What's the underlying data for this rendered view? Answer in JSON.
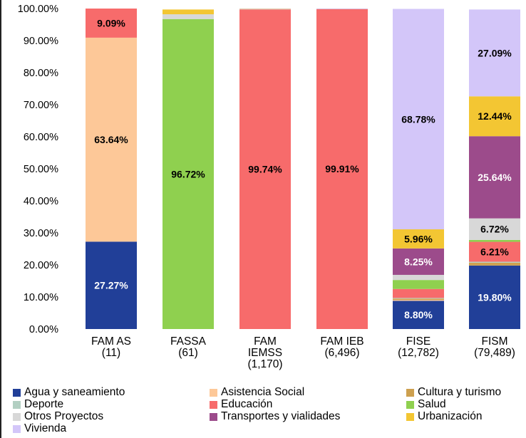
{
  "chart_data": {
    "type": "bar",
    "stacked": true,
    "y_axis": {
      "ticks": [
        "0.00%",
        "10.00%",
        "20.00%",
        "30.00%",
        "40.00%",
        "50.00%",
        "60.00%",
        "70.00%",
        "80.00%",
        "90.00%",
        "100.00%"
      ],
      "ylim": [
        0,
        100
      ],
      "unit": "%"
    },
    "categories": [
      {
        "lines": [
          "FAM AS",
          "(11)"
        ]
      },
      {
        "lines": [
          "FASSA",
          "(61)"
        ]
      },
      {
        "lines": [
          "FAM",
          "IEMSS",
          "(1,170)"
        ]
      },
      {
        "lines": [
          "FAM IEB",
          "(6,496)"
        ]
      },
      {
        "lines": [
          "FISE",
          "(12,782)"
        ]
      },
      {
        "lines": [
          "FISM",
          "(79,489)"
        ]
      }
    ],
    "series": [
      {
        "name": "Agua y saneamiento",
        "color": "#213f98",
        "values": [
          27.27,
          0,
          0,
          0,
          8.8,
          19.8
        ]
      },
      {
        "name": "Asistencia Social",
        "color": "#fdc898",
        "values": [
          63.64,
          0,
          0,
          0,
          0.3,
          0
        ]
      },
      {
        "name": "Cultura y turismo",
        "color": "#cda04f",
        "values": [
          0,
          0,
          0,
          0,
          0.4,
          0.9
        ]
      },
      {
        "name": "Deporte",
        "color": "#b2cfc2",
        "values": [
          0,
          0,
          0,
          0,
          0.2,
          0.3
        ]
      },
      {
        "name": "Educación",
        "color": "#f76b6b",
        "values": [
          9.09,
          0,
          99.74,
          99.91,
          2.8,
          6.21
        ]
      },
      {
        "name": "Salud",
        "color": "#8fd04f",
        "values": [
          0,
          96.72,
          0,
          0,
          2.8,
          0.6
        ]
      },
      {
        "name": "Otros Proyectos",
        "color": "#d8d8d8",
        "values": [
          0,
          1.5,
          0.1,
          0.05,
          1.6,
          6.72
        ]
      },
      {
        "name": "Transportes y vialidades",
        "color": "#9c4b8b",
        "values": [
          0,
          0,
          0,
          0,
          8.25,
          25.64
        ]
      },
      {
        "name": "Urbanización",
        "color": "#f3c633",
        "values": [
          0,
          1.48,
          0.06,
          0,
          5.96,
          12.44
        ]
      },
      {
        "name": "Vivienda",
        "color": "#d3c6f9",
        "values": [
          0,
          0,
          0.1,
          0.04,
          68.78,
          27.09
        ]
      }
    ],
    "data_labels": [
      {
        "bar": 0,
        "series": 0,
        "text": "27.27%",
        "color": "#ffffff"
      },
      {
        "bar": 0,
        "series": 1,
        "text": "63.64%",
        "color": "#000000"
      },
      {
        "bar": 0,
        "series": 4,
        "text": "9.09%",
        "color": "#000000"
      },
      {
        "bar": 1,
        "series": 5,
        "text": "96.72%",
        "color": "#000000"
      },
      {
        "bar": 2,
        "series": 4,
        "text": "99.74%",
        "color": "#000000"
      },
      {
        "bar": 3,
        "series": 4,
        "text": "99.91%",
        "color": "#000000"
      },
      {
        "bar": 4,
        "series": 0,
        "text": "8.80%",
        "color": "#ffffff"
      },
      {
        "bar": 4,
        "series": 7,
        "text": "8.25%",
        "color": "#ffffff"
      },
      {
        "bar": 4,
        "series": 8,
        "text": "5.96%",
        "color": "#000000"
      },
      {
        "bar": 4,
        "series": 9,
        "text": "68.78%",
        "color": "#000000"
      },
      {
        "bar": 5,
        "series": 0,
        "text": "19.80%",
        "color": "#ffffff"
      },
      {
        "bar": 5,
        "series": 4,
        "text": "6.21%",
        "color": "#000000"
      },
      {
        "bar": 5,
        "series": 6,
        "text": "6.72%",
        "color": "#000000"
      },
      {
        "bar": 5,
        "series": 7,
        "text": "25.64%",
        "color": "#ffffff"
      },
      {
        "bar": 5,
        "series": 8,
        "text": "12.44%",
        "color": "#000000"
      },
      {
        "bar": 5,
        "series": 9,
        "text": "27.09%",
        "color": "#000000"
      }
    ],
    "legend": {
      "position": "bottom",
      "items": [
        "Agua y saneamiento",
        "Asistencia Social",
        "Cultura y turismo",
        "Deporte",
        "Educación",
        "Salud",
        "Otros Proyectos",
        "Transportes y vialidades",
        "Urbanización",
        "Vivienda"
      ]
    },
    "grid": false
  }
}
